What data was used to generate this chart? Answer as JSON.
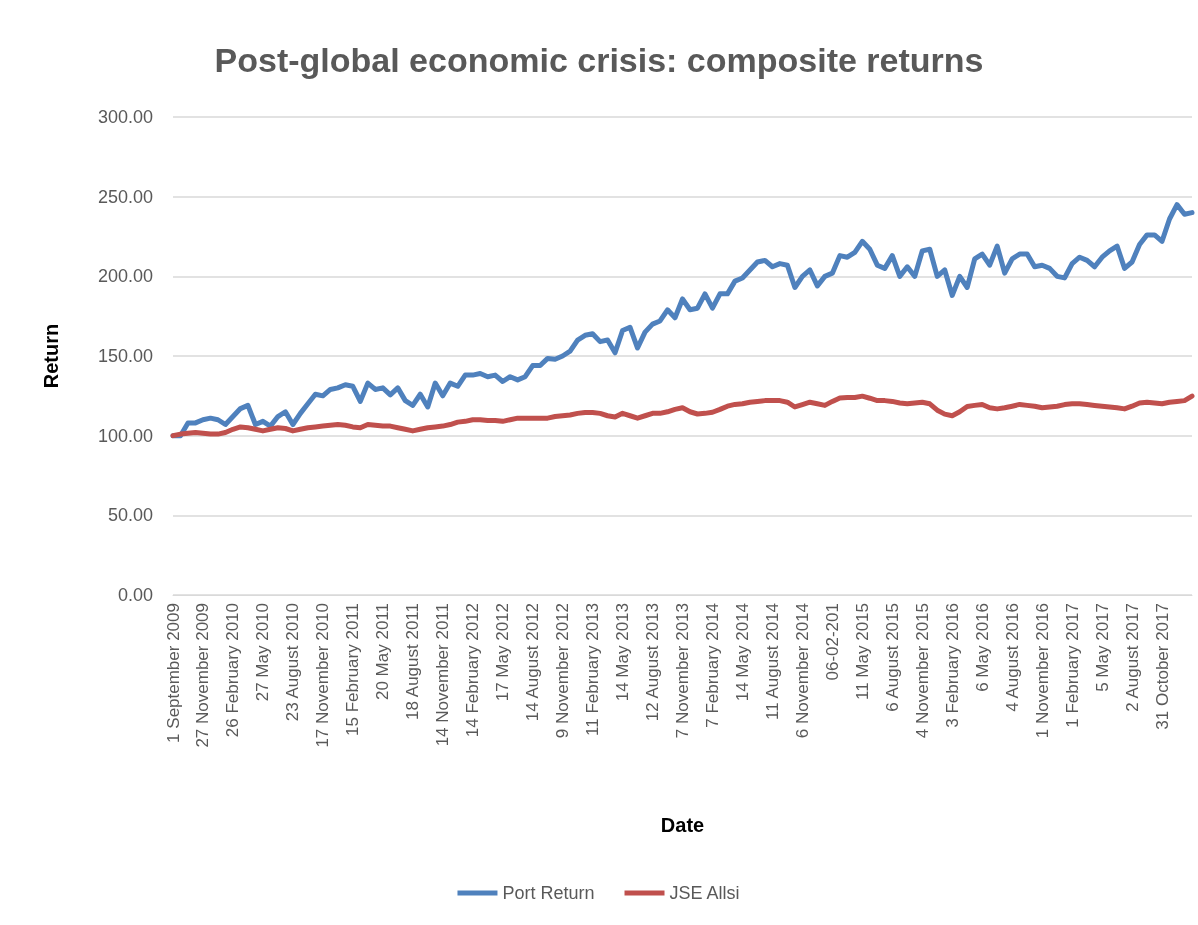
{
  "chart_data": {
    "type": "line",
    "title": "Post-global economic crisis: composite returns",
    "xlabel": "Date",
    "ylabel": "Return",
    "categories": [
      "1 September 2009",
      null,
      null,
      null,
      "27 November 2009",
      null,
      null,
      null,
      "26 February 2010",
      null,
      null,
      null,
      "27 May 2010",
      null,
      null,
      null,
      "23 August 2010",
      null,
      null,
      null,
      "17 November 2010",
      null,
      null,
      null,
      "15 February 2011",
      null,
      null,
      null,
      "20 May 2011",
      null,
      null,
      null,
      "18 August 2011",
      null,
      null,
      null,
      "14 November 2011",
      null,
      null,
      null,
      "14 February 2012",
      null,
      null,
      null,
      "17 May 2012",
      null,
      null,
      null,
      "14 August 2012",
      null,
      null,
      null,
      "9 November 2012",
      null,
      null,
      null,
      "11 February 2013",
      null,
      null,
      null,
      "14 May 2013",
      null,
      null,
      null,
      "12 August 2013",
      null,
      null,
      null,
      "7 November 2013",
      null,
      null,
      null,
      "7 February 2014",
      null,
      null,
      null,
      "14 May 2014",
      null,
      null,
      null,
      "11 August 2014",
      null,
      null,
      null,
      "6 November 2014",
      null,
      null,
      null,
      "06-02-201",
      null,
      null,
      null,
      "11 May 2015",
      null,
      null,
      null,
      "6 August 2015",
      null,
      null,
      null,
      "4 November 2015",
      null,
      null,
      null,
      "3 February 2016",
      null,
      null,
      null,
      "6 May 2016",
      null,
      null,
      null,
      "4 August 2016",
      null,
      null,
      null,
      "1 November 2016",
      null,
      null,
      null,
      "1 February 2017",
      null,
      null,
      null,
      "5 May 2017",
      null,
      null,
      null,
      "2 August 2017",
      null,
      null,
      null,
      "31 October 2017",
      null,
      null,
      null,
      null
    ],
    "series": [
      {
        "name": "Port Return",
        "color": "#4f81bd",
        "values": [
          100,
          100,
          108,
          108,
          110,
          111,
          110,
          107,
          112,
          117,
          119,
          107,
          109,
          106,
          112,
          115,
          107,
          114,
          120,
          126,
          125,
          129,
          130,
          132,
          131,
          121.5,
          133,
          129,
          130,
          125.6,
          130,
          122,
          119,
          126,
          118,
          133,
          125,
          133,
          131,
          138,
          138,
          139,
          137,
          138,
          134,
          137,
          135,
          137,
          144,
          144,
          148.5,
          148,
          150,
          153,
          160,
          163,
          164,
          159,
          160,
          152,
          166,
          168,
          155,
          165,
          170,
          172,
          179,
          174,
          185.8,
          179,
          180,
          189,
          180,
          189,
          189,
          197,
          199,
          204,
          209,
          210,
          206,
          208,
          207,
          193,
          200,
          204,
          194,
          200,
          202,
          213,
          212,
          215,
          222,
          217,
          207,
          205,
          213,
          200,
          206,
          200,
          216,
          217,
          200,
          204,
          188,
          200,
          193,
          211,
          214,
          207,
          219,
          202,
          211,
          214,
          214,
          206,
          207,
          205,
          200,
          199,
          208,
          212,
          210,
          206,
          212,
          216,
          219,
          205,
          209,
          220,
          226,
          226,
          222,
          236,
          245,
          239,
          240
        ]
      },
      {
        "name": "JSE Allsi",
        "color": "#c0504d",
        "values": [
          100,
          101,
          101.5,
          102,
          101.5,
          101,
          101,
          102,
          104,
          105.5,
          105,
          104,
          103,
          104,
          105,
          104.5,
          103,
          104,
          105,
          105.5,
          106,
          106.5,
          107,
          106.5,
          105.5,
          105,
          107,
          106.5,
          106,
          106,
          105,
          104,
          103,
          104,
          105,
          105.5,
          106,
          107,
          108.5,
          109,
          110,
          110,
          109.5,
          109.5,
          109,
          110,
          111,
          111,
          111,
          111,
          111,
          112,
          112.5,
          113,
          114,
          114.6,
          114.6,
          114,
          112.5,
          111.7,
          114,
          112.5,
          111,
          112.5,
          114,
          114,
          115,
          116.5,
          117.5,
          115,
          113.6,
          114,
          114.7,
          116.5,
          118.5,
          119.6,
          120,
          121,
          121.5,
          122,
          122,
          122,
          121,
          118,
          119.5,
          121,
          120,
          119,
          121.5,
          123.7,
          124,
          124,
          124.8,
          123.5,
          122,
          122,
          121.5,
          120.5,
          120,
          120.5,
          121,
          120,
          116,
          113.5,
          112.5,
          115,
          118.3,
          119,
          119.6,
          117.5,
          116.8,
          117.5,
          118.5,
          119.6,
          119,
          118.5,
          117.5,
          118,
          118.5,
          119.5,
          120,
          120,
          119.5,
          119,
          118.5,
          118,
          117.5,
          116.8,
          118.5,
          120.5,
          121,
          120.5,
          120,
          121,
          121.5,
          122,
          124.8
        ]
      }
    ],
    "ylim": [
      0,
      300
    ],
    "yticks": [
      {
        "value": 0,
        "label": "0.00"
      },
      {
        "value": 50,
        "label": "50.00"
      },
      {
        "value": 100,
        "label": "100.00"
      },
      {
        "value": 150,
        "label": "150.00"
      },
      {
        "value": 200,
        "label": "200.00"
      },
      {
        "value": 250,
        "label": "250.00"
      },
      {
        "value": 300,
        "label": "300.00"
      }
    ],
    "grid": "y",
    "legend": "bottom",
    "marker": "none",
    "line_style": "solid"
  }
}
